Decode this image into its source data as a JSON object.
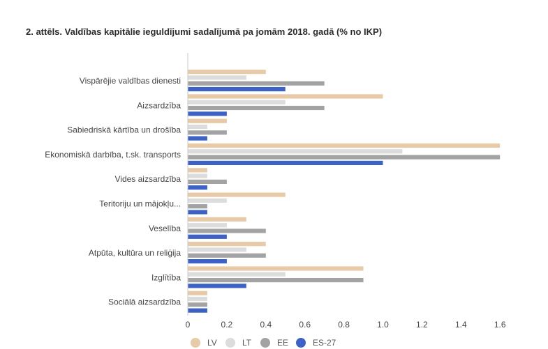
{
  "chart_data": {
    "type": "bar",
    "orientation": "horizontal",
    "title": "2. attēls. Valdības kapitālie ieguldījumi sadalījumā pa jomām 2018. gadā (% no IKP)",
    "categories": [
      "Vispārējie valdības dienesti",
      "Aizsardzība",
      "Sabiedriskā kārtība un drošība",
      "Ekonomiskā darbība, t.sk. transports",
      "Vides aizsardzība",
      "Teritoriju un mājokļu...",
      "Veselība",
      "Atpūta, kultūra un reliģija",
      "Izglītība",
      "Sociālā aizsardzība"
    ],
    "series": [
      {
        "name": "LV",
        "color": "#e8c9a8",
        "values": [
          0.4,
          1.0,
          0.2,
          1.6,
          0.1,
          0.5,
          0.3,
          0.4,
          0.9,
          0.1
        ]
      },
      {
        "name": "LT",
        "color": "#dcdcdc",
        "values": [
          0.3,
          0.5,
          0.1,
          1.1,
          0.1,
          0.2,
          0.2,
          0.3,
          0.5,
          0.1
        ]
      },
      {
        "name": "EE",
        "color": "#a3a3a3",
        "values": [
          0.7,
          0.7,
          0.2,
          1.6,
          0.2,
          0.1,
          0.4,
          0.4,
          0.9,
          0.1
        ]
      },
      {
        "name": "ES-27",
        "color": "#3d62c4",
        "values": [
          0.5,
          0.2,
          0.1,
          1.0,
          0.1,
          0.1,
          0.2,
          0.2,
          0.3,
          0.1
        ]
      }
    ],
    "xlim": [
      0,
      1.6
    ],
    "xticks": [
      "0",
      "0.2",
      "0.4",
      "0.6",
      "0.8",
      "1.0",
      "1.2",
      "1.4",
      "1.6"
    ],
    "grid": false,
    "legend_position": "bottom"
  }
}
